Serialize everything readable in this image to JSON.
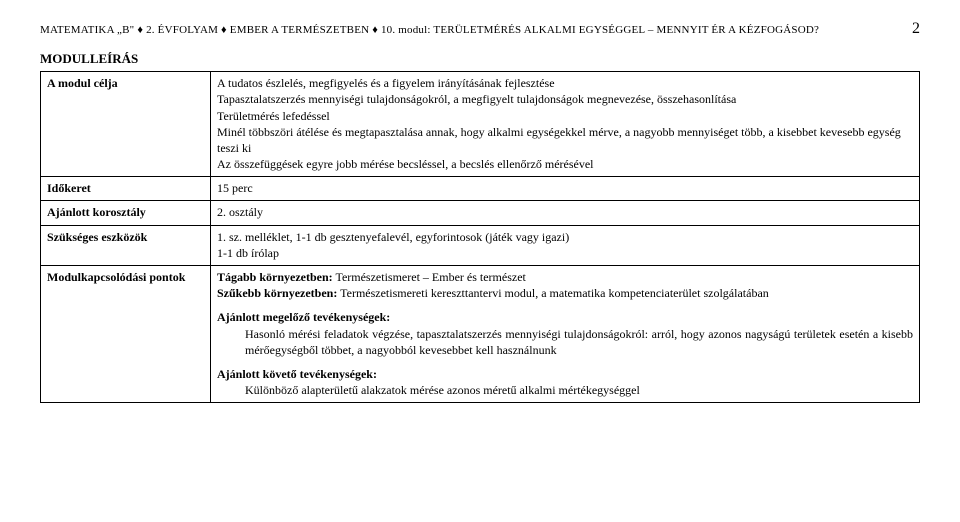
{
  "header": {
    "left": "MATEMATIKA „B\" ♦ 2. ÉVFOLYAM ♦ EMBER A TERMÉSZETBEN ♦ 10. modul: TERÜLETMÉRÉS ALKALMI EGYSÉGGEL – MENNYIT ÉR A KÉZFOGÁSOD?",
    "page": "2"
  },
  "moduleTitle": "MODULLEÍRÁS",
  "rows": {
    "aim": {
      "label": "A modul célja",
      "lines": [
        "A tudatos észlelés, megfigyelés és a figyelem irányításának fejlesztése",
        "Tapasztalatszerzés mennyiségi tulajdonságokról, a megfigyelt tulajdonságok megnevezése, összehasonlítása",
        "Területmérés lefedéssel",
        "Minél többszöri átélése és megtapasztalása annak, hogy alkalmi egységekkel mérve, a nagyobb mennyiséget több, a kisebbet kevesebb egység teszi ki",
        "Az összefüggések egyre jobb mérése becsléssel, a becslés ellenőrző mérésével"
      ]
    },
    "time": {
      "label": "Időkeret",
      "value": "15 perc"
    },
    "age": {
      "label": "Ajánlott korosztály",
      "value": "2. osztály"
    },
    "tools": {
      "label": "Szükséges eszközök",
      "lines": [
        "1. sz. melléklet, 1-1 db gesztenyefalevél, egyforintosok (játék vagy igazi)",
        "1-1 db írólap"
      ]
    },
    "links": {
      "label": "Modulkapcsolódási pontok",
      "broader": {
        "title": "Tágabb környezetben:",
        "text": " Természetismeret – Ember és természet"
      },
      "narrower": {
        "title": "Szűkebb környezetben:",
        "text": " Természetismereti kereszttantervi modul, a matematika kompetenciaterület szolgálatában"
      },
      "preceding": {
        "title": "Ajánlott megelőző tevékenységek:",
        "text": "Hasonló mérési feladatok végzése, tapasztalatszerzés mennyiségi tulajdonságokról: arról, hogy azonos nagyságú területek esetén a kisebb mérőegységből többet, a nagyobból kevesebbet kell használnunk"
      },
      "following": {
        "title": "Ajánlott követő tevékenységek:",
        "text": "Különböző alapterületű alakzatok mérése azonos méretű alkalmi mértékegységgel"
      }
    }
  }
}
